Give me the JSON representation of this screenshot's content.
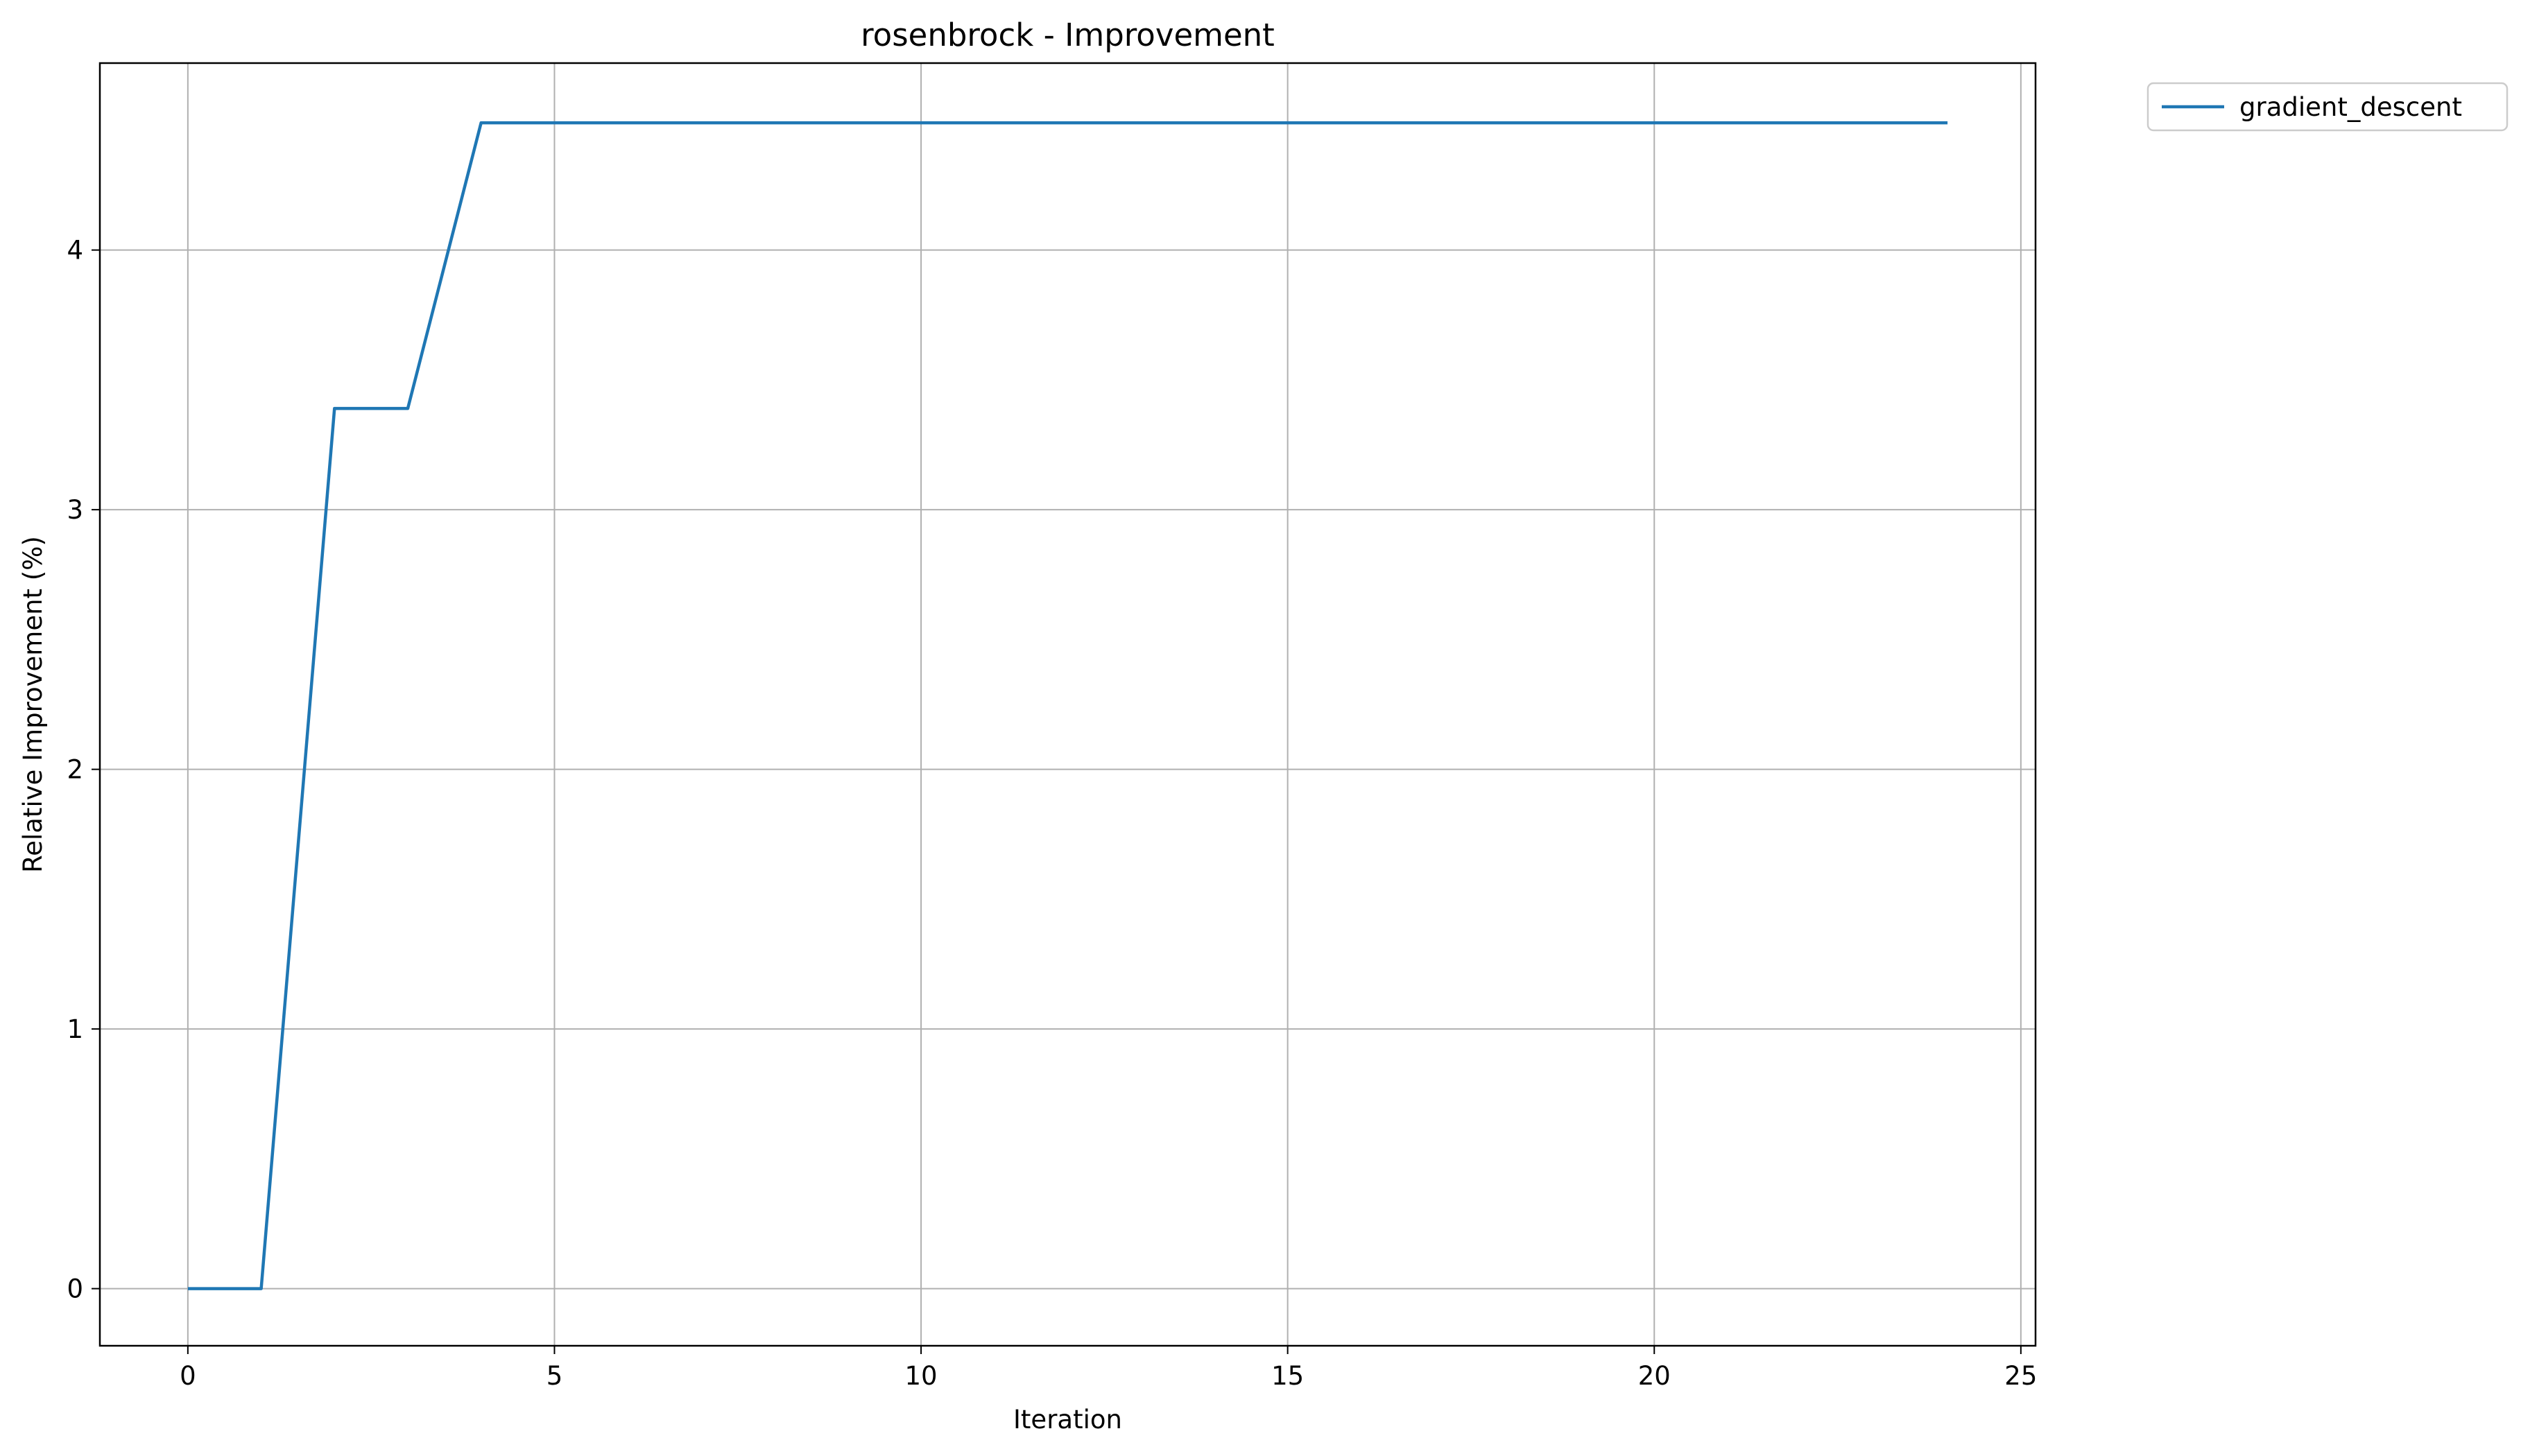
{
  "chart_data": {
    "type": "line",
    "title": "rosenbrock - Improvement",
    "xlabel": "Iteration",
    "ylabel": "Relative Improvement (%)",
    "xlim": [
      -1.2,
      25.2
    ],
    "ylim": [
      -0.22,
      4.72
    ],
    "xticks": [
      0,
      5,
      10,
      15,
      20,
      25
    ],
    "yticks": [
      0,
      1,
      2,
      3,
      4
    ],
    "grid": true,
    "legend_position": "outside-top-right",
    "series": [
      {
        "name": "gradient_descent",
        "color": "#1f77b4",
        "x": [
          0,
          1,
          2,
          3,
          4,
          5,
          6,
          7,
          8,
          9,
          10,
          11,
          12,
          13,
          14,
          15,
          16,
          17,
          18,
          19,
          20,
          21,
          22,
          23,
          24
        ],
        "y": [
          0,
          0,
          3.39,
          3.39,
          4.49,
          4.49,
          4.49,
          4.49,
          4.49,
          4.49,
          4.49,
          4.49,
          4.49,
          4.49,
          4.49,
          4.49,
          4.49,
          4.49,
          4.49,
          4.49,
          4.49,
          4.49,
          4.49,
          4.49,
          4.49
        ]
      }
    ]
  }
}
